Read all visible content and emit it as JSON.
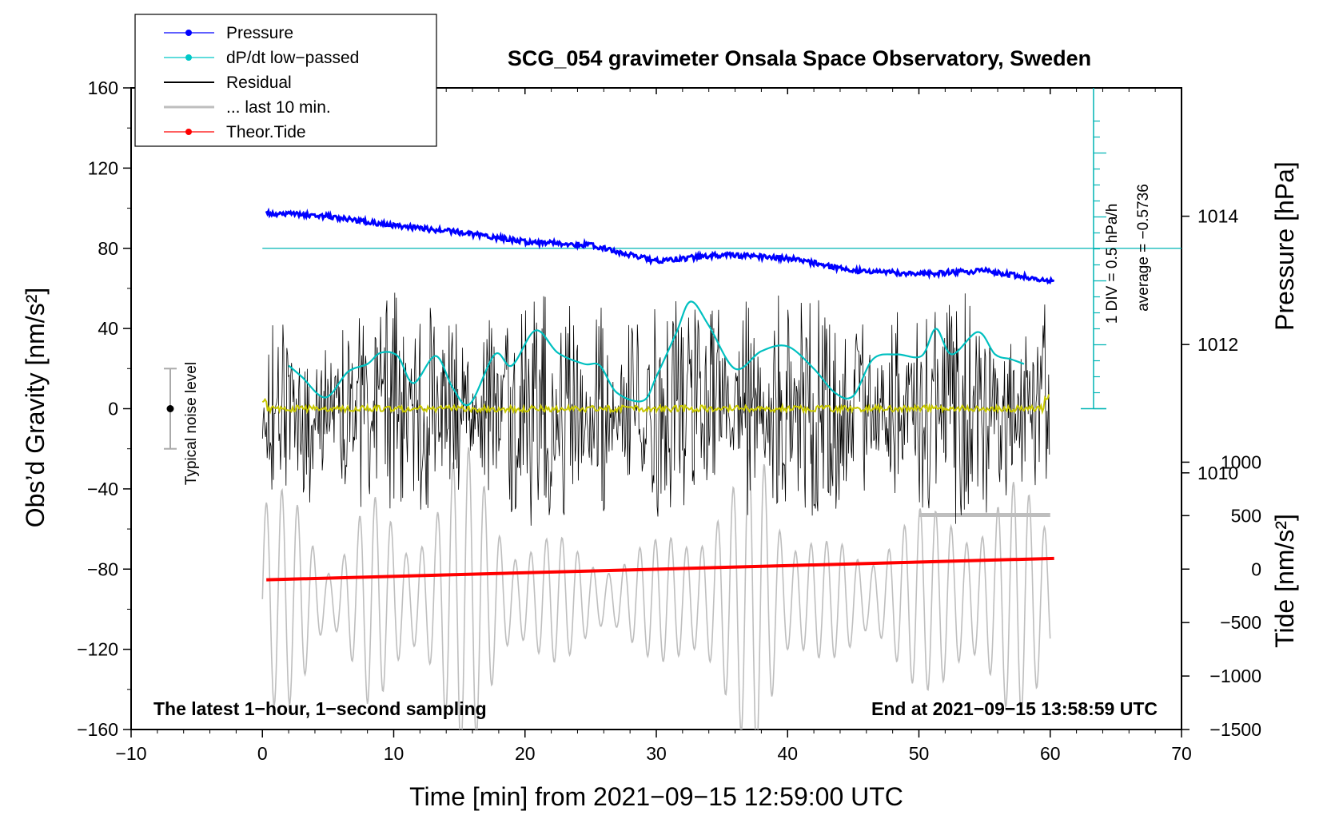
{
  "chart_data": {
    "type": "line",
    "title": "SCG_054 gravimeter Onsala Space Observatory, Sweden",
    "xlabel": "Time [min] from 2021−09−15 12:59:00 UTC",
    "ylabel_left": "Obs’d Gravity [nm/s²]",
    "ylabel_right_top": "Pressure [hPa]",
    "ylabel_right_bottom": "Tide [nm/s²]",
    "xlim": [
      -10,
      70
    ],
    "ylim": [
      -160,
      160
    ],
    "pressure_lim": [
      1006,
      1016
    ],
    "tide_lim": [
      -1500,
      4500
    ],
    "x_ticks": [
      -10,
      0,
      10,
      20,
      30,
      40,
      50,
      60,
      70
    ],
    "x_tick_labels": [
      "−10",
      "0",
      "10",
      "20",
      "30",
      "40",
      "50",
      "60",
      "70"
    ],
    "y_ticks": [
      160,
      120,
      80,
      40,
      0,
      -40,
      -80,
      -120,
      -160
    ],
    "y_tick_labels": [
      "160",
      "120",
      "80",
      "40",
      "0",
      "−40",
      "−80",
      "−120",
      "−160"
    ],
    "pressure_ticks": [
      1014,
      1012,
      1010
    ],
    "pressure_tick_labels": [
      "1014",
      "1012",
      "1010"
    ],
    "tide_ticks": [
      1000,
      500,
      0,
      -500,
      -1000,
      -1500
    ],
    "tide_tick_labels": [
      "1000",
      "500",
      "0",
      "−500",
      "−1000",
      "−1500"
    ],
    "legend": [
      {
        "label": "Pressure",
        "color": "#0000ff",
        "marker": "dot"
      },
      {
        "label": "dP/dt low−passed",
        "color": "#00c8c8",
        "marker": "dot"
      },
      {
        "label": "Residual",
        "color": "#000000",
        "marker": "line"
      },
      {
        "label": "... last 10 min.",
        "color": "#bebebe",
        "marker": "line"
      },
      {
        "label": "Theor.Tide",
        "color": "#ff0000",
        "marker": "dot"
      }
    ],
    "series": [
      {
        "name": "Pressure",
        "axis": "pressure",
        "color": "#0000ff",
        "x": [
          0,
          5,
          10,
          15,
          20,
          25,
          30,
          35,
          40,
          45,
          50,
          55,
          60
        ],
        "values": [
          1014.05,
          1014.0,
          1013.85,
          1013.75,
          1013.6,
          1013.55,
          1013.3,
          1013.4,
          1013.35,
          1013.15,
          1013.1,
          1013.15,
          1013.0
        ]
      },
      {
        "name": "dP/dt low−passed",
        "axis": "dpdt_div",
        "color": "#00c8c8",
        "x": [
          2,
          3,
          4.8,
          6.5,
          8,
          9,
          10.3,
          11.5,
          13.2,
          14.5,
          15.8,
          17.7,
          19,
          20.8,
          22.5,
          24.5,
          25.7,
          27,
          29,
          30,
          31.5,
          32.6,
          34,
          36,
          38,
          40,
          42,
          43.6,
          45,
          46.5,
          48.3,
          50.2,
          51.3,
          52.5,
          54.5,
          55.8,
          57,
          58
        ],
        "values": [
          2.7,
          2.0,
          0.7,
          2.3,
          2.8,
          3.5,
          3.3,
          1.6,
          3.3,
          1.3,
          0.3,
          3.4,
          2.7,
          4.9,
          3.5,
          2.8,
          2.7,
          1.0,
          0.5,
          2.0,
          4.7,
          6.7,
          5.2,
          2.5,
          3.6,
          3.9,
          2.5,
          1.0,
          0.8,
          3.1,
          3.4,
          3.3,
          5.0,
          3.4,
          4.8,
          3.4,
          3.1,
          2.8
        ]
      },
      {
        "name": "Residual",
        "axis": "gravity",
        "color": "#000000",
        "x": [
          0,
          60
        ],
        "values": [
          0,
          0
        ],
        "envelope": [
          [
            0,
            45
          ],
          [
            8,
            60
          ],
          [
            15,
            55
          ],
          [
            22,
            60
          ],
          [
            30,
            55
          ],
          [
            38,
            62
          ],
          [
            45,
            55
          ],
          [
            52,
            60
          ],
          [
            60,
            60
          ]
        ]
      },
      {
        "name": "... last 10 min.",
        "axis": "gravity",
        "color": "#bebebe",
        "x": [
          50,
          60
        ],
        "values": [
          -53,
          -53
        ]
      },
      {
        "name": "Theor.Tide",
        "axis": "tide",
        "color": "#ff0000",
        "x": [
          0,
          60
        ],
        "values": [
          -100,
          100
        ]
      }
    ],
    "dpdt_scale_label": "1 DIV = 0.5 hPa/h",
    "dpdt_average_label": "average = −0.5736",
    "noise_label": "Typical noise level",
    "noise_range": [
      -20,
      20
    ],
    "note_left": "The latest 1−hour, 1−second sampling",
    "note_right": "End at 2021−09−15 13:58:59 UTC"
  }
}
